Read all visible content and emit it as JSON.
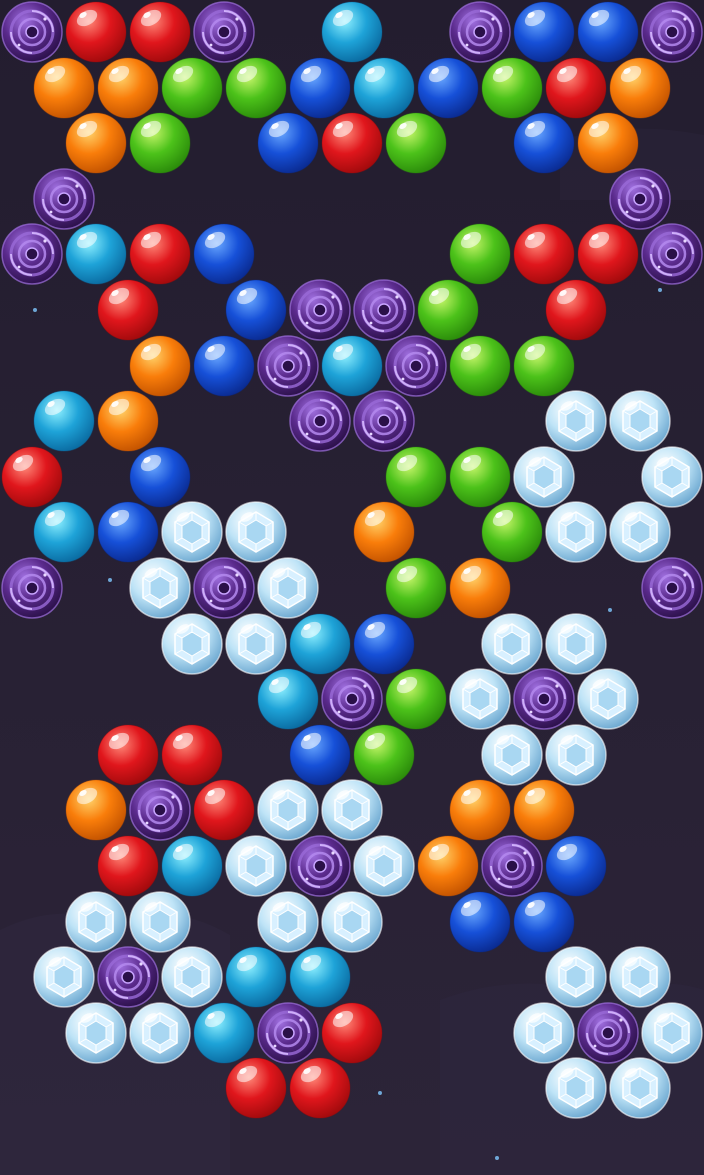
{
  "game": {
    "type": "bubble-shooter",
    "bubble_types": {
      "red": {
        "base": "#e0161c",
        "light": "#ff8a7a",
        "dark": "#a00a0c"
      },
      "orange": {
        "base": "#f97d0a",
        "light": "#ffd36b",
        "dark": "#c25200"
      },
      "green": {
        "base": "#4cc21a",
        "light": "#c6f56a",
        "dark": "#2a8a0a"
      },
      "blue": {
        "base": "#1650d8",
        "light": "#6aa8ff",
        "dark": "#0a2a90"
      },
      "cyan": {
        "base": "#1ea3d8",
        "light": "#8ff0ff",
        "dark": "#0a6aa0"
      },
      "ice": {
        "base": "#bfe4f7",
        "light": "#ffffff",
        "dark": "#6aa6cf"
      },
      "vortex": {
        "base": "#5a2a8c",
        "light": "#a070e0",
        "dark": "#2a1048"
      }
    },
    "background": {
      "top": "#231d2f",
      "bottom": "#2c2438"
    },
    "rows": [
      [
        "vortex",
        "red",
        "red",
        "vortex",
        null,
        "cyan",
        null,
        "vortex",
        "blue",
        "blue",
        "vortex"
      ],
      [
        "orange",
        "orange",
        "green",
        "green",
        "blue",
        "cyan",
        "blue",
        "green",
        "red",
        "orange"
      ],
      [
        null,
        "orange",
        "green",
        null,
        "blue",
        "red",
        "green",
        null,
        "blue",
        "orange",
        null
      ],
      [
        "vortex",
        null,
        null,
        null,
        null,
        null,
        null,
        null,
        null,
        "vortex"
      ],
      [
        "vortex",
        "cyan",
        "red",
        "blue",
        null,
        null,
        null,
        "green",
        "red",
        "red",
        "vortex"
      ],
      [
        null,
        "red",
        null,
        "blue",
        "vortex",
        "vortex",
        "green",
        null,
        "red",
        null
      ],
      [
        null,
        null,
        "orange",
        "blue",
        "vortex",
        "cyan",
        "vortex",
        "green",
        "green",
        null,
        null
      ],
      [
        "cyan",
        "orange",
        null,
        null,
        "vortex",
        "vortex",
        null,
        null,
        "ice",
        "ice"
      ],
      [
        "red",
        null,
        "blue",
        null,
        null,
        null,
        "green",
        "green",
        "ice",
        null,
        "ice"
      ],
      [
        "cyan",
        "blue",
        "ice",
        "ice",
        null,
        "orange",
        null,
        "green",
        "ice",
        "ice"
      ],
      [
        "vortex",
        null,
        "ice",
        "vortex",
        "ice",
        null,
        "green",
        "orange",
        null,
        null,
        "vortex"
      ],
      [
        null,
        null,
        "ice",
        "ice",
        "cyan",
        "blue",
        null,
        "ice",
        "ice",
        null
      ],
      [
        null,
        null,
        null,
        null,
        "cyan",
        "vortex",
        "green",
        "ice",
        "vortex",
        "ice",
        null
      ],
      [
        null,
        "red",
        "red",
        null,
        "blue",
        "green",
        null,
        "ice",
        "ice",
        null
      ],
      [
        null,
        "orange",
        "vortex",
        "red",
        "ice",
        "ice",
        null,
        "orange",
        "orange",
        null,
        null
      ],
      [
        null,
        "red",
        "cyan",
        "ice",
        "vortex",
        "ice",
        "orange",
        "vortex",
        "blue",
        null
      ],
      [
        null,
        "ice",
        "ice",
        null,
        "ice",
        "ice",
        null,
        "blue",
        "blue",
        null,
        null
      ],
      [
        "ice",
        "vortex",
        "ice",
        "cyan",
        "cyan",
        null,
        null,
        null,
        "ice",
        "ice"
      ],
      [
        null,
        "ice",
        "ice",
        "cyan",
        "vortex",
        "red",
        null,
        null,
        "ice",
        "vortex",
        "ice"
      ],
      [
        null,
        null,
        null,
        "red",
        "red",
        null,
        null,
        null,
        "ice",
        "ice"
      ]
    ]
  }
}
